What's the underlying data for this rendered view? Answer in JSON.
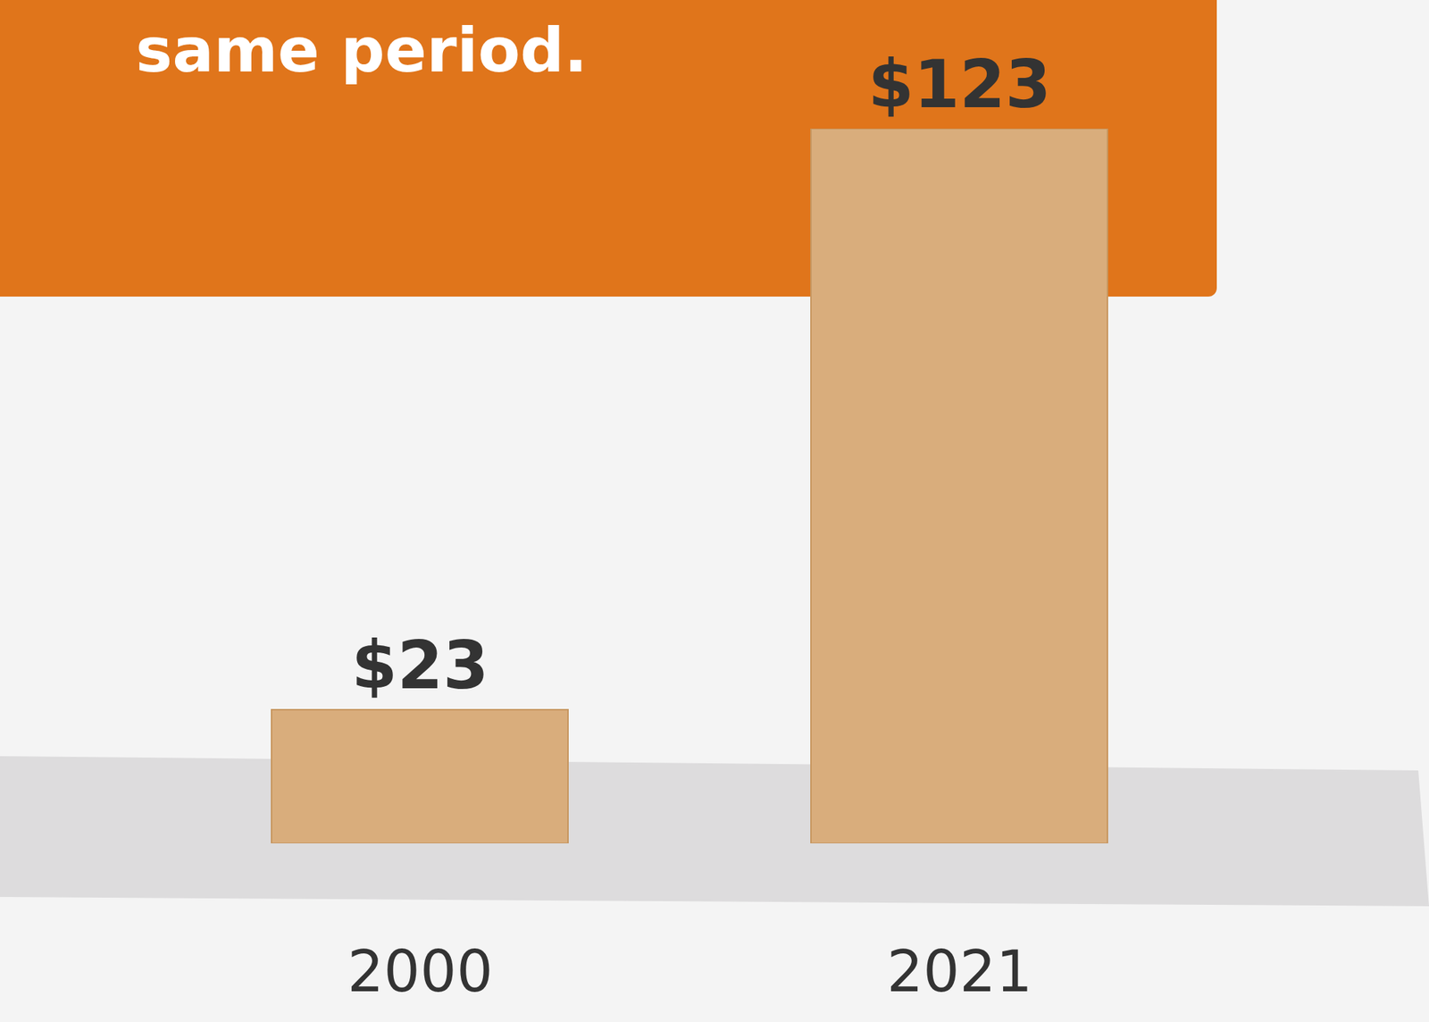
{
  "chart_data": {
    "type": "bar",
    "subtitle": "same period.",
    "categories": [
      "2000",
      "2021"
    ],
    "values": [
      23,
      123
    ],
    "value_labels": [
      "$23",
      "$123"
    ],
    "data_labels": true,
    "tick_labels": "x",
    "color": "#d9ad7c"
  }
}
